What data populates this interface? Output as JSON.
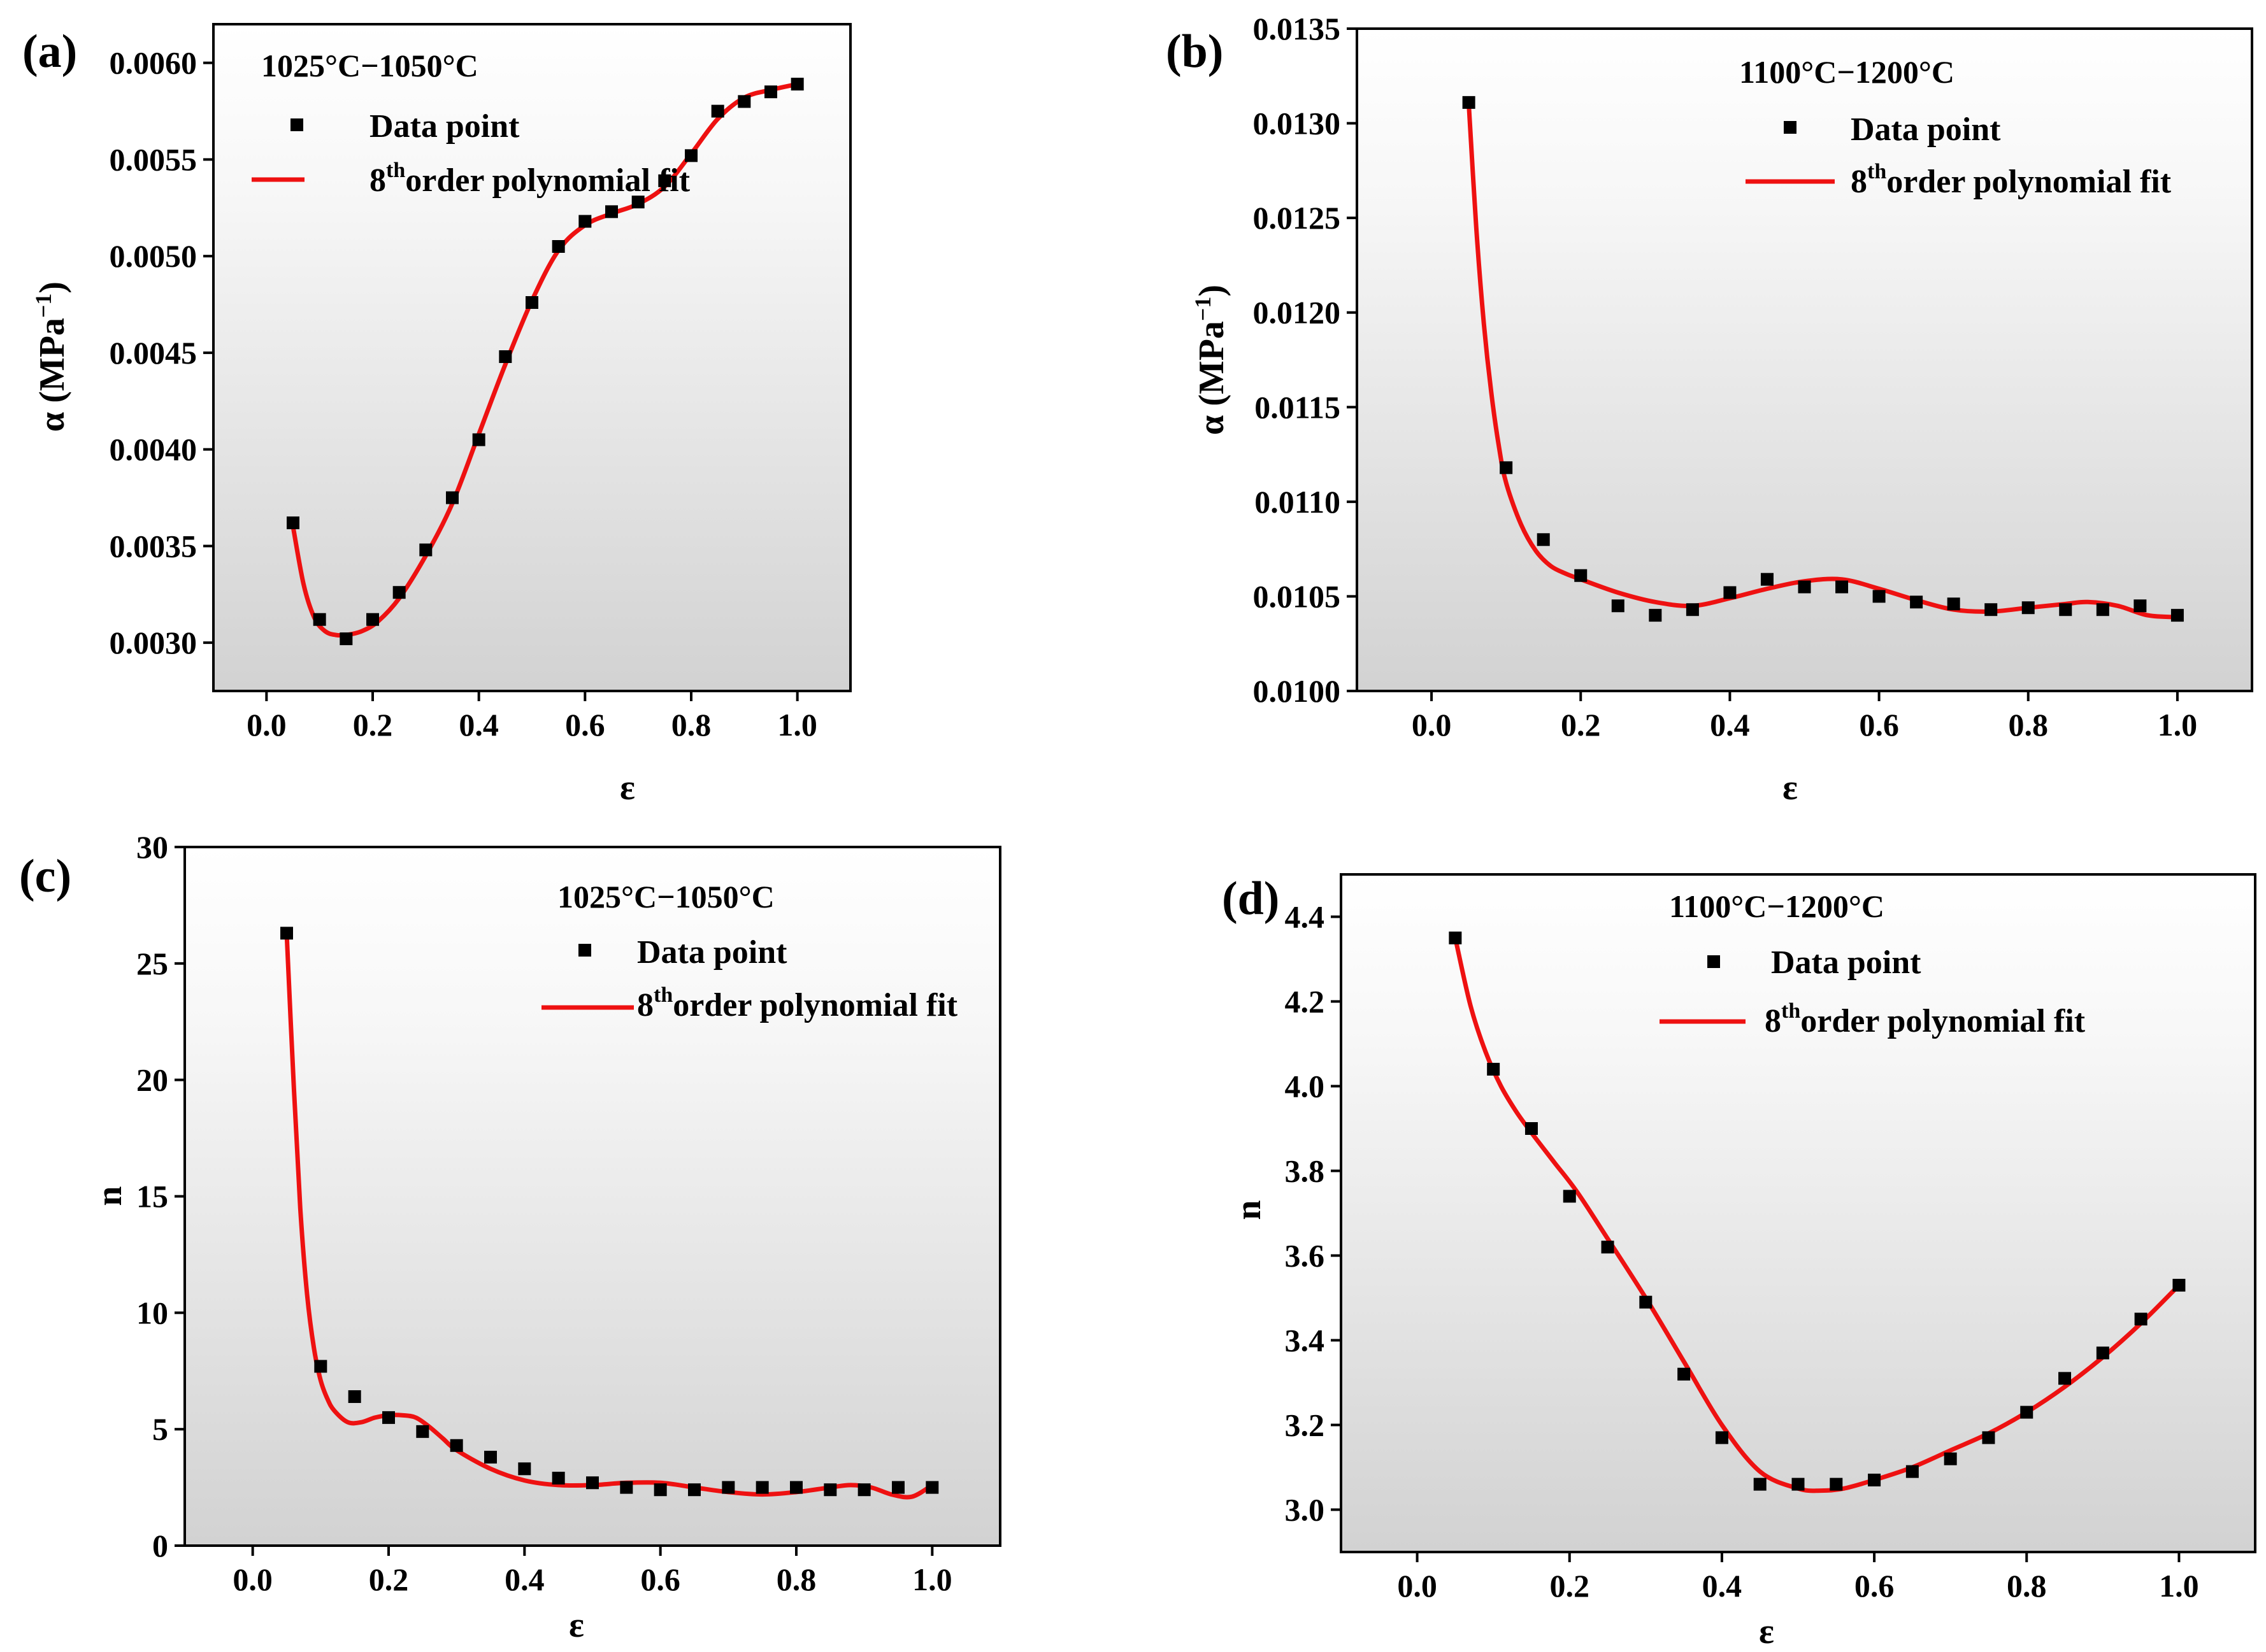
{
  "colors": {
    "fit": "#ee1111",
    "marker": "#000000",
    "frame": "#000000",
    "bg_top": "#ffffff",
    "bg_bottom": "#d2d2d2"
  },
  "chart_data": [
    {
      "id": "a",
      "panel_label": "(a)",
      "type": "scatter",
      "title": "1025°C−1050°C",
      "xlabel": "ε",
      "ylabel_main": "α (MPa",
      "ylabel_sup": "−1",
      "ylabel_end": ")",
      "xlim": [
        -0.1,
        1.1
      ],
      "ylim": [
        0.00275,
        0.0062
      ],
      "xticks": [
        0.0,
        0.2,
        0.4,
        0.6,
        0.8,
        1.0
      ],
      "xtick_labels": [
        "0.0",
        "0.2",
        "0.4",
        "0.6",
        "0.8",
        "1.0"
      ],
      "yticks": [
        0.003,
        0.0035,
        0.004,
        0.0045,
        0.005,
        0.0055,
        0.006
      ],
      "ytick_labels": [
        "0.0030",
        "0.0035",
        "0.0040",
        "0.0045",
        "0.0050",
        "0.0055",
        "0.0060"
      ],
      "legend": {
        "marker_label": "Data point",
        "fit_main": "8",
        "fit_sup": "th",
        "fit_rest": "order polynomial fit"
      },
      "x": [
        0.05,
        0.1,
        0.15,
        0.2,
        0.25,
        0.3,
        0.35,
        0.4,
        0.45,
        0.5,
        0.55,
        0.6,
        0.65,
        0.7,
        0.75,
        0.8,
        0.85,
        0.9,
        0.95,
        1.0
      ],
      "y": [
        0.00362,
        0.00312,
        0.00302,
        0.00312,
        0.00326,
        0.00348,
        0.00375,
        0.00405,
        0.00448,
        0.00476,
        0.00505,
        0.00518,
        0.00523,
        0.00528,
        0.00539,
        0.00552,
        0.00575,
        0.0058,
        0.00585,
        0.00589
      ],
      "fit_x": [
        0.05,
        0.07,
        0.09,
        0.11,
        0.13,
        0.15,
        0.18,
        0.21,
        0.25,
        0.3,
        0.35,
        0.4,
        0.45,
        0.5,
        0.55,
        0.6,
        0.65,
        0.7,
        0.75,
        0.8,
        0.85,
        0.9,
        0.95,
        1.0
      ],
      "fit_y": [
        0.0036,
        0.0033,
        0.00313,
        0.00306,
        0.00304,
        0.00304,
        0.00306,
        0.00311,
        0.00323,
        0.00345,
        0.00372,
        0.00408,
        0.00444,
        0.00477,
        0.00503,
        0.00516,
        0.00522,
        0.00527,
        0.00536,
        0.00553,
        0.00571,
        0.00582,
        0.00586,
        0.00589
      ]
    },
    {
      "id": "b",
      "panel_label": "(b)",
      "type": "scatter",
      "title": "1100°C−1200°C",
      "xlabel": "ε",
      "ylabel_main": "α (MPa",
      "ylabel_sup": "−1",
      "ylabel_end": ")",
      "xlim": [
        -0.1,
        1.1
      ],
      "ylim": [
        0.01,
        0.0135
      ],
      "xticks": [
        0.0,
        0.2,
        0.4,
        0.6,
        0.8,
        1.0
      ],
      "xtick_labels": [
        "0.0",
        "0.2",
        "0.4",
        "0.6",
        "0.8",
        "1.0"
      ],
      "yticks": [
        0.01,
        0.0105,
        0.011,
        0.0115,
        0.012,
        0.0125,
        0.013,
        0.0135
      ],
      "ytick_labels": [
        "0.0100",
        "0.0105",
        "0.0110",
        "0.0115",
        "0.0120",
        "0.0125",
        "0.0130",
        "0.0135"
      ],
      "legend": {
        "marker_label": "Data point",
        "fit_main": "8",
        "fit_sup": "th",
        "fit_rest": "order polynomial fit"
      },
      "x": [
        0.05,
        0.1,
        0.15,
        0.2,
        0.25,
        0.3,
        0.35,
        0.4,
        0.45,
        0.5,
        0.55,
        0.6,
        0.65,
        0.7,
        0.75,
        0.8,
        0.85,
        0.9,
        0.95,
        1.0
      ],
      "y": [
        0.01311,
        0.01118,
        0.0108,
        0.01061,
        0.01045,
        0.0104,
        0.01043,
        0.01052,
        0.01059,
        0.01055,
        0.01055,
        0.0105,
        0.01047,
        0.01046,
        0.01043,
        0.01044,
        0.01043,
        0.01043,
        0.01045,
        0.0104
      ],
      "fit_x": [
        0.05,
        0.06,
        0.07,
        0.08,
        0.09,
        0.1,
        0.12,
        0.14,
        0.16,
        0.18,
        0.2,
        0.25,
        0.3,
        0.35,
        0.4,
        0.45,
        0.5,
        0.55,
        0.6,
        0.65,
        0.7,
        0.75,
        0.8,
        0.85,
        0.88,
        0.92,
        0.96,
        1.0
      ],
      "fit_y": [
        0.0131,
        0.01245,
        0.01195,
        0.01158,
        0.0113,
        0.0111,
        0.01088,
        0.01074,
        0.01066,
        0.01062,
        0.01059,
        0.01052,
        0.01047,
        0.01045,
        0.01049,
        0.01054,
        0.01058,
        0.01059,
        0.01054,
        0.01048,
        0.01043,
        0.01042,
        0.01044,
        0.01046,
        0.01047,
        0.01045,
        0.0104,
        0.01039
      ]
    },
    {
      "id": "c",
      "panel_label": "(c)",
      "type": "scatter",
      "title": "1025°C−1050°C",
      "xlabel": "ε",
      "ylabel_main": "n",
      "ylabel_sup": "",
      "ylabel_end": "",
      "xlim": [
        -0.1,
        1.1
      ],
      "ylim": [
        0,
        30
      ],
      "xticks": [
        0.0,
        0.2,
        0.4,
        0.6,
        0.8,
        1.0
      ],
      "xtick_labels": [
        "0.0",
        "0.2",
        "0.4",
        "0.6",
        "0.8",
        "1.0"
      ],
      "yticks": [
        0,
        5,
        10,
        15,
        20,
        25,
        30
      ],
      "ytick_labels": [
        "0",
        "5",
        "10",
        "15",
        "20",
        "25",
        "30"
      ],
      "legend": {
        "marker_label": "Data point",
        "fit_main": "8",
        "fit_sup": "th",
        "fit_rest": "order polynomial fit"
      },
      "x": [
        0.05,
        0.1,
        0.15,
        0.2,
        0.25,
        0.3,
        0.35,
        0.4,
        0.45,
        0.5,
        0.55,
        0.6,
        0.65,
        0.7,
        0.75,
        0.8,
        0.85,
        0.9,
        0.95,
        1.0
      ],
      "y": [
        26.3,
        7.7,
        6.4,
        5.5,
        4.9,
        4.3,
        3.8,
        3.3,
        2.9,
        2.7,
        2.5,
        2.4,
        2.4,
        2.5,
        2.5,
        2.5,
        2.4,
        2.4,
        2.5,
        2.5
      ],
      "fit_x": [
        0.05,
        0.06,
        0.07,
        0.08,
        0.09,
        0.1,
        0.11,
        0.12,
        0.14,
        0.16,
        0.18,
        0.2,
        0.22,
        0.24,
        0.26,
        0.28,
        0.3,
        0.35,
        0.4,
        0.45,
        0.5,
        0.55,
        0.6,
        0.65,
        0.7,
        0.75,
        0.8,
        0.85,
        0.88,
        0.91,
        0.94,
        0.97,
        1.0
      ],
      "fit_y": [
        26.3,
        20.0,
        14.5,
        10.8,
        8.5,
        7.1,
        6.3,
        5.8,
        5.3,
        5.3,
        5.5,
        5.6,
        5.6,
        5.5,
        5.1,
        4.6,
        4.1,
        3.3,
        2.8,
        2.6,
        2.6,
        2.7,
        2.7,
        2.5,
        2.3,
        2.2,
        2.3,
        2.5,
        2.6,
        2.5,
        2.2,
        2.1,
        2.6
      ]
    },
    {
      "id": "d",
      "panel_label": "(d)",
      "type": "scatter",
      "title": "1100°C−1200°C",
      "xlabel": "ε",
      "ylabel_main": "n",
      "ylabel_sup": "",
      "ylabel_end": "",
      "xlim": [
        -0.1,
        1.1
      ],
      "ylim": [
        2.9,
        4.5
      ],
      "xticks": [
        0.0,
        0.2,
        0.4,
        0.6,
        0.8,
        1.0
      ],
      "xtick_labels": [
        "0.0",
        "0.2",
        "0.4",
        "0.6",
        "0.8",
        "1.0"
      ],
      "yticks": [
        3.0,
        3.2,
        3.4,
        3.6,
        3.8,
        4.0,
        4.2,
        4.4
      ],
      "ytick_labels": [
        "3.0",
        "3.2",
        "3.4",
        "3.6",
        "3.8",
        "4.0",
        "4.2",
        "4.4"
      ],
      "legend": {
        "marker_label": "Data point",
        "fit_main": "8",
        "fit_sup": "th",
        "fit_rest": "order polynomial fit"
      },
      "x": [
        0.05,
        0.1,
        0.15,
        0.2,
        0.25,
        0.3,
        0.35,
        0.4,
        0.45,
        0.5,
        0.55,
        0.6,
        0.65,
        0.7,
        0.75,
        0.8,
        0.85,
        0.9,
        0.95,
        1.0
      ],
      "y": [
        4.35,
        4.04,
        3.9,
        3.74,
        3.62,
        3.49,
        3.32,
        3.17,
        3.06,
        3.06,
        3.06,
        3.07,
        3.09,
        3.12,
        3.17,
        3.23,
        3.31,
        3.37,
        3.45,
        3.53
      ],
      "fit_x": [
        0.05,
        0.07,
        0.09,
        0.11,
        0.13,
        0.15,
        0.18,
        0.21,
        0.25,
        0.3,
        0.35,
        0.4,
        0.45,
        0.5,
        0.53,
        0.56,
        0.6,
        0.65,
        0.7,
        0.75,
        0.8,
        0.85,
        0.9,
        0.95,
        1.0
      ],
      "fit_y": [
        4.35,
        4.19,
        4.08,
        4.0,
        3.94,
        3.89,
        3.82,
        3.75,
        3.64,
        3.5,
        3.35,
        3.2,
        3.09,
        3.05,
        3.045,
        3.05,
        3.07,
        3.1,
        3.14,
        3.18,
        3.23,
        3.29,
        3.36,
        3.44,
        3.53
      ]
    }
  ]
}
